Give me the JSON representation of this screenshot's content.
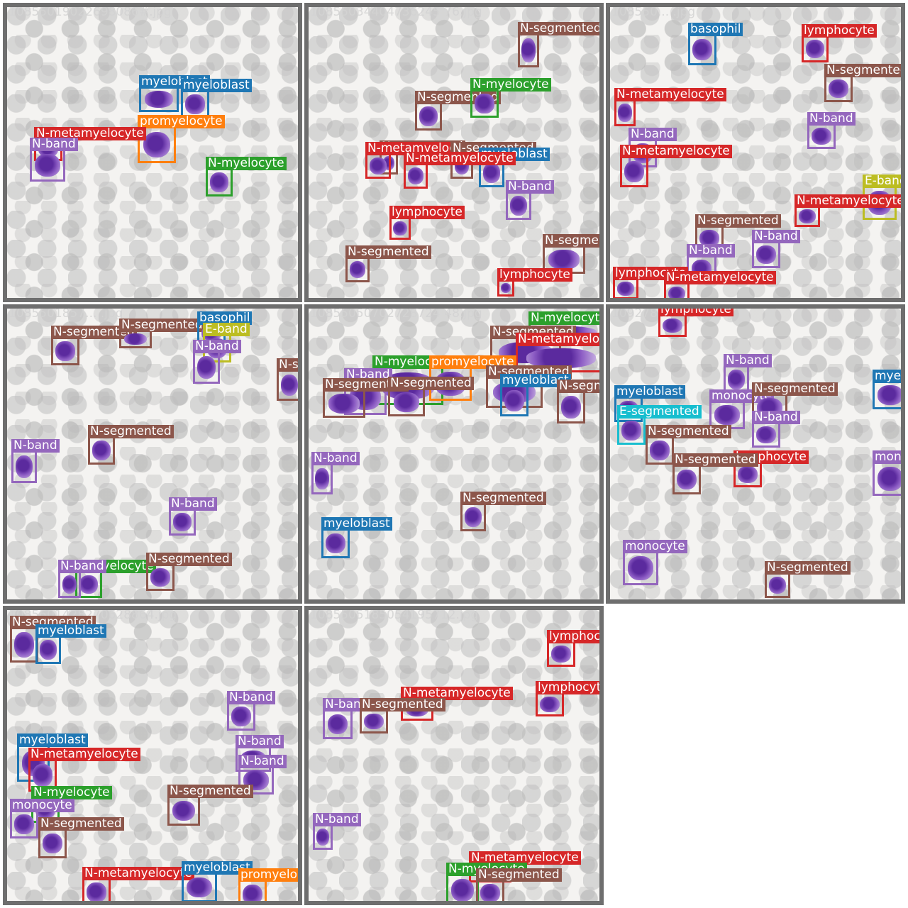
{
  "class_colors": {
    "myeloblast": "#1f77b4",
    "promyelocyte": "#ff7f0e",
    "N-myelocyte": "#2ca02c",
    "N-metamyelocyte": "#d62728",
    "N-band": "#9467bd",
    "N-segmented": "#8c564b",
    "lymphocyte": "#d62728",
    "monocyte": "#9467bd",
    "basophil": "#1f77b4",
    "E-band": "#bcbd22",
    "E-segmented": "#17becf"
  },
  "tiles": [
    {
      "filename": "10855019022698086#.jpg",
      "detections": [
        {
          "label": "myeloblast"
        },
        {
          "label": "myeloblast"
        },
        {
          "label": "promyelocyte"
        },
        {
          "label": "N-metamyelocyte"
        },
        {
          "label": "N-band"
        },
        {
          "label": "N-myelocyte"
        }
      ]
    },
    {
      "filename": "10855034404736245 76.jpg",
      "detections": [
        {
          "label": "N-segmented"
        },
        {
          "label": "N-segmented"
        },
        {
          "label": "N-myelocyte"
        },
        {
          "label": "N-segmented"
        },
        {
          "label": "N-metamyelocyte"
        },
        {
          "label": "N-segmented"
        },
        {
          "label": "myeloblast"
        },
        {
          "label": "N-metamyelocyte"
        },
        {
          "label": "N-band"
        },
        {
          "label": "lymphocyte"
        },
        {
          "label": "N-segmented"
        },
        {
          "label": "N-segmented"
        },
        {
          "label": "lymphocyte"
        }
      ]
    },
    {
      "filename": "108550... .jpg",
      "detections": [
        {
          "label": "basophil"
        },
        {
          "label": "lymphocyte"
        },
        {
          "label": "N-segmented"
        },
        {
          "label": "N-metamyelocyte"
        },
        {
          "label": "N-band"
        },
        {
          "label": "N-band"
        },
        {
          "label": "N-metamyelocyte"
        },
        {
          "label": "E-band"
        },
        {
          "label": "N-metamyelocyte"
        },
        {
          "label": "N-segmented"
        },
        {
          "label": "N-band"
        },
        {
          "label": "N-band"
        },
        {
          "label": "lymphocyte"
        },
        {
          "label": "N-metamyelocyte"
        }
      ]
    },
    {
      "filename": "1085501857... .jpg",
      "detections": [
        {
          "label": "N-segmented"
        },
        {
          "label": "N-segmented"
        },
        {
          "label": "basophil"
        },
        {
          "label": "E-band"
        },
        {
          "label": "N-band"
        },
        {
          "label": "N-segmented"
        },
        {
          "label": "N-segmented"
        },
        {
          "label": "N-band"
        },
        {
          "label": "N-band"
        },
        {
          "label": "N-myelocyte"
        },
        {
          "label": "N-band"
        },
        {
          "label": "N-segmented"
        }
      ]
    },
    {
      "filename": "10855050702728724 48.jpg",
      "detections": [
        {
          "label": "N-myelocyte"
        },
        {
          "label": "N-segmented"
        },
        {
          "label": "N-metamyelocyte"
        },
        {
          "label": "N-myelocyte"
        },
        {
          "label": "promyelocyte"
        },
        {
          "label": "N-band"
        },
        {
          "label": "N-segmented"
        },
        {
          "label": "N-segmented"
        },
        {
          "label": "N-segmented"
        },
        {
          "label": "myeloblast"
        },
        {
          "label": "N-segmented"
        },
        {
          "label": "N-band"
        },
        {
          "label": "N-segmented"
        },
        {
          "label": "myeloblast"
        }
      ]
    },
    {
      "filename": "1092780... 2368.jpg",
      "detections": [
        {
          "label": "lymphocyte"
        },
        {
          "label": "N-band"
        },
        {
          "label": "myeloblast"
        },
        {
          "label": "myeloblast"
        },
        {
          "label": "monocyte"
        },
        {
          "label": "N-segmented"
        },
        {
          "label": "E-segmented"
        },
        {
          "label": "N-band"
        },
        {
          "label": "N-segmented"
        },
        {
          "label": "lymphocyte"
        },
        {
          "label": "N-segmented"
        },
        {
          "label": "monocyte"
        },
        {
          "label": "monocyte"
        },
        {
          "label": "N-segmented"
        }
      ]
    },
    {
      "filename": "1085501428270628864.jpg",
      "detections": [
        {
          "label": "N-segmented"
        },
        {
          "label": "myeloblast"
        },
        {
          "label": "N-band"
        },
        {
          "label": "myeloblast"
        },
        {
          "label": "N-band"
        },
        {
          "label": "N-metamyelocyte"
        },
        {
          "label": "N-band"
        },
        {
          "label": "N-myelocyte"
        },
        {
          "label": "N-segmented"
        },
        {
          "label": "monocyte"
        },
        {
          "label": "N-segmented"
        },
        {
          "label": "N-metamyelocyte"
        },
        {
          "label": "myeloblast"
        },
        {
          "label": "promyelocyte"
        }
      ]
    },
    {
      "filename": "1085505185054195712.jpg",
      "detections": [
        {
          "label": "lymphocyte"
        },
        {
          "label": "N-metamyelocyte"
        },
        {
          "label": "lymphocyte"
        },
        {
          "label": "N-band"
        },
        {
          "label": "N-segmented"
        },
        {
          "label": "N-band"
        },
        {
          "label": "N-metamyelocyte"
        },
        {
          "label": "N-myelocyte"
        },
        {
          "label": "N-segmented"
        }
      ]
    }
  ]
}
